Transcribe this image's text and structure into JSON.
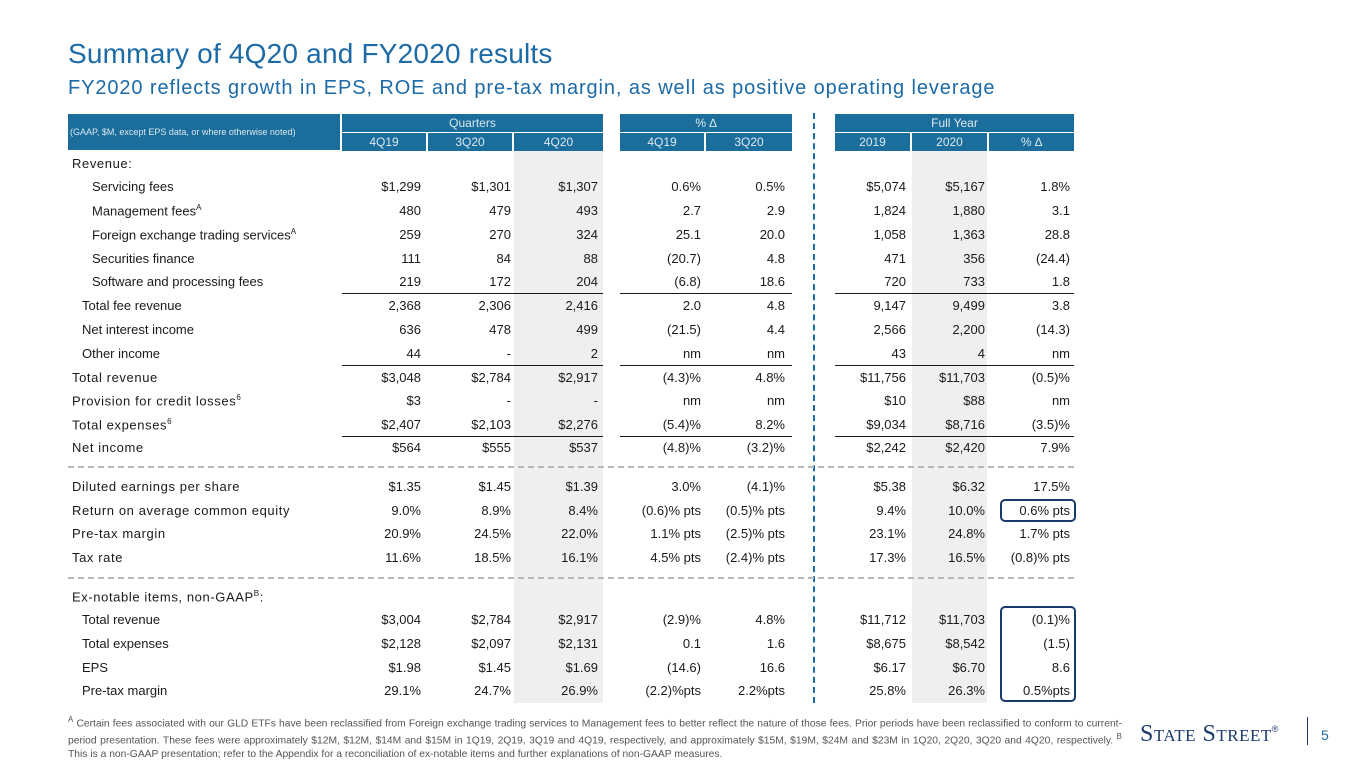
{
  "title": "Summary of 4Q20 and FY2020 results",
  "subtitle": "FY2020 reflects growth in EPS, ROE and pre-tax margin, as well as positive operating leverage",
  "table": {
    "note": "(GAAP, $M, except EPS data, or where otherwise noted)",
    "groups": {
      "quarters": "Quarters",
      "pct": "% ∆",
      "fullyear": "Full Year"
    },
    "cols": [
      "4Q19",
      "3Q20",
      "4Q20",
      "4Q19",
      "3Q20",
      "2019",
      "2020",
      "% ∆"
    ],
    "rows": [
      {
        "label": "Revenue:",
        "vals": [
          "",
          "",
          "",
          "",
          "",
          "",
          "",
          ""
        ]
      },
      {
        "label": "Servicing fees",
        "vals": [
          "$1,299",
          "$1,301",
          "$1,307",
          "0.6%",
          "0.5%",
          "$5,074",
          "$5,167",
          "1.8%"
        ]
      },
      {
        "label": "Management fees",
        "sup": "A",
        "vals": [
          "480",
          "479",
          "493",
          "2.7",
          "2.9",
          "1,824",
          "1,880",
          "3.1"
        ]
      },
      {
        "label": "Foreign exchange trading services",
        "sup": "A",
        "vals": [
          "259",
          "270",
          "324",
          "25.1",
          "20.0",
          "1,058",
          "1,363",
          "28.8"
        ]
      },
      {
        "label": "Securities finance",
        "vals": [
          "111",
          "84",
          "88",
          "(20.7)",
          "4.8",
          "471",
          "356",
          "(24.4)"
        ]
      },
      {
        "label": "Software and processing fees",
        "vals": [
          "219",
          "172",
          "204",
          "(6.8)",
          "18.6",
          "720",
          "733",
          "1.8"
        ]
      },
      {
        "label": "Total fee revenue",
        "vals": [
          "2,368",
          "2,306",
          "2,416",
          "2.0",
          "4.8",
          "9,147",
          "9,499",
          "3.8"
        ]
      },
      {
        "label": "Net interest income",
        "vals": [
          "636",
          "478",
          "499",
          "(21.5)",
          "4.4",
          "2,566",
          "2,200",
          "(14.3)"
        ]
      },
      {
        "label": "Other income",
        "vals": [
          "44",
          "-",
          "2",
          "nm",
          "nm",
          "43",
          "4",
          "nm"
        ]
      },
      {
        "label": "Total revenue",
        "vals": [
          "$3,048",
          "$2,784",
          "$2,917",
          "(4.3)%",
          "4.8%",
          "$11,756",
          "$11,703",
          "(0.5)%"
        ]
      },
      {
        "label": "Provision for credit losses",
        "sup": "6",
        "vals": [
          "$3",
          "-",
          "-",
          "nm",
          "nm",
          "$10",
          "$88",
          "nm"
        ]
      },
      {
        "label": "Total expenses",
        "sup": "6",
        "vals": [
          "$2,407",
          "$2,103",
          "$2,276",
          "(5.4)%",
          "8.2%",
          "$9,034",
          "$8,716",
          "(3.5)%"
        ]
      },
      {
        "label": "Net income",
        "vals": [
          "$564",
          "$555",
          "$537",
          "(4.8)%",
          "(3.2)%",
          "$2,242",
          "$2,420",
          "7.9%"
        ]
      },
      {
        "label": "Diluted earnings per share",
        "vals": [
          "$1.35",
          "$1.45",
          "$1.39",
          "3.0%",
          "(4.1)%",
          "$5.38",
          "$6.32",
          "17.5%"
        ]
      },
      {
        "label": "Return on average common equity",
        "vals": [
          "9.0%",
          "8.9%",
          "8.4%",
          "(0.6)% pts",
          "(0.5)% pts",
          "9.4%",
          "10.0%",
          "0.6% pts"
        ]
      },
      {
        "label": "Pre-tax margin",
        "vals": [
          "20.9%",
          "24.5%",
          "22.0%",
          "1.1% pts",
          "(2.5)% pts",
          "23.1%",
          "24.8%",
          "1.7% pts"
        ]
      },
      {
        "label": "Tax rate",
        "vals": [
          "11.6%",
          "18.5%",
          "16.1%",
          "4.5% pts",
          "(2.4)% pts",
          "17.3%",
          "16.5%",
          "(0.8)% pts"
        ]
      },
      {
        "label": "Ex-notable items, non-GAAP",
        "sup": "B",
        "suffix": ":",
        "vals": [
          "",
          "",
          "",
          "",
          "",
          "",
          "",
          ""
        ]
      },
      {
        "label": "Total revenue",
        "vals": [
          "$3,004",
          "$2,784",
          "$2,917",
          "(2.9)%",
          "4.8%",
          "$11,712",
          "$11,703",
          "(0.1)%"
        ]
      },
      {
        "label": "Total expenses",
        "vals": [
          "$2,128",
          "$2,097",
          "$2,131",
          "0.1",
          "1.6",
          "$8,675",
          "$8,542",
          "(1.5)"
        ]
      },
      {
        "label": "EPS",
        "vals": [
          "$1.98",
          "$1.45",
          "$1.69",
          "(14.6)",
          "16.6",
          "$6.17",
          "$6.70",
          "8.6"
        ]
      },
      {
        "label": "Pre-tax margin",
        "vals": [
          "29.1%",
          "24.7%",
          "26.9%",
          "(2.2)%pts",
          "2.2%pts",
          "25.8%",
          "26.3%",
          "0.5%pts"
        ]
      }
    ]
  },
  "footnote": {
    "a_mark": "A",
    "a_text": "Certain fees associated with our GLD ETFs have been reclassified from Foreign exchange trading services to Management fees to better reflect the nature of those fees. Prior periods have been reclassified to conform to current-period presentation. These fees were approximately $12M, $12M, $14M and $15M in 1Q19, 2Q19, 3Q19 and 4Q19, respectively, and approximately $15M, $19M, $24M and $23M in 1Q20, 2Q20, 3Q20 and 4Q20, respectively.",
    "b_mark": "B",
    "b_text": "This is a non-GAAP presentation; refer to the Appendix for a reconciliation of ex-notable items and further explanations of non-GAAP measures."
  },
  "logo": "State Street",
  "logo_mark": "®",
  "page_number": "5"
}
